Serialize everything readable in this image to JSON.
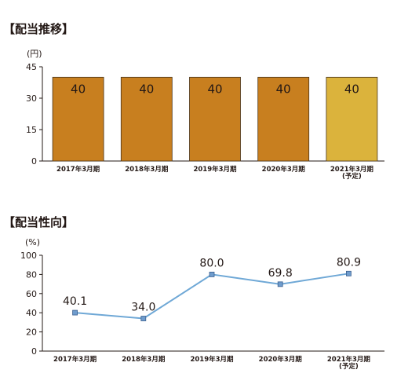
{
  "chart_data": [
    {
      "type": "bar",
      "title": "【配当推移】",
      "ylabel": "(円)",
      "xlabel": "",
      "categories": [
        "2017年3月期",
        "2018年3月期",
        "2019年3月期",
        "2020年3月期",
        "2021年3月期\n(予定)"
      ],
      "values": [
        40,
        40,
        40,
        40,
        40
      ],
      "data_labels": [
        "40",
        "40",
        "40",
        "40",
        "40"
      ],
      "ylim": [
        0,
        45
      ],
      "yticks": [
        "0",
        "15",
        "30",
        "45"
      ],
      "grid": false,
      "colors": {
        "actual": "#c87f1f",
        "forecast": "#dbb33c",
        "border": "#4a3418"
      }
    },
    {
      "type": "line",
      "title": "【配当性向】",
      "ylabel": "(%)",
      "xlabel": "",
      "categories": [
        "2017年3月期",
        "2018年3月期",
        "2019年3月期",
        "2020年3月期",
        "2021年3月期\n(予定)"
      ],
      "values": [
        40.1,
        34.0,
        80.0,
        69.8,
        80.9
      ],
      "data_labels": [
        "40.1",
        "34.0",
        "80.0",
        "69.8",
        "80.9"
      ],
      "ylim": [
        0,
        100
      ],
      "yticks": [
        "0",
        "20",
        "40",
        "60",
        "80",
        "100"
      ],
      "grid": false,
      "colors": {
        "line": "#6fa8d6",
        "marker_fill": "#6f9ccd",
        "marker_border": "#3a5f8f"
      }
    }
  ]
}
